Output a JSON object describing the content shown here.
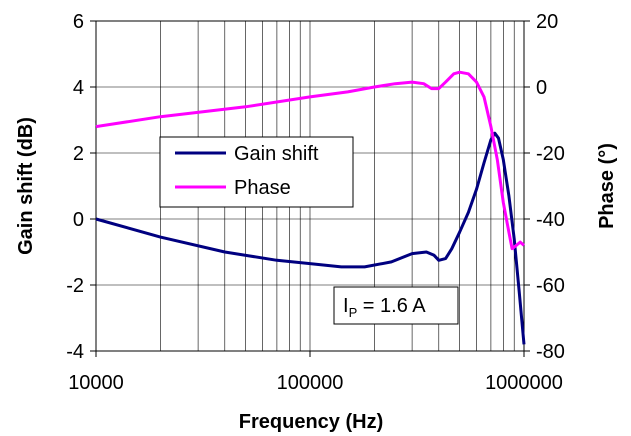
{
  "chart_data": {
    "type": "line",
    "title": "",
    "xlabel": "Frequency (Hz)",
    "ylabel": "Gain shift (dB)",
    "y2label": "Phase (°)",
    "xscale": "log",
    "xlim": [
      10000,
      1000000
    ],
    "ylim": [
      -4,
      6
    ],
    "y2lim": [
      -80,
      20
    ],
    "x_ticks": [
      "10000",
      "100000",
      "1000000"
    ],
    "y_ticks": [
      "-4",
      "-2",
      "0",
      "2",
      "4",
      "6"
    ],
    "y2_ticks": [
      "-80",
      "-60",
      "-40",
      "-20",
      "0",
      "20"
    ],
    "grid": {
      "horizontal_major": true,
      "vertical_log_minor": true
    },
    "legend_placement": "center-left",
    "annotation": {
      "main": "I",
      "sub": "P",
      "rest": " = 1.6 A"
    },
    "series": [
      {
        "name": "Gain shift",
        "axis": "left",
        "color": "#000080",
        "points": [
          [
            10000,
            0.0
          ],
          [
            20000,
            -0.55
          ],
          [
            40000,
            -1.0
          ],
          [
            70000,
            -1.25
          ],
          [
            100000,
            -1.35
          ],
          [
            140000,
            -1.45
          ],
          [
            180000,
            -1.45
          ],
          [
            240000,
            -1.3
          ],
          [
            300000,
            -1.05
          ],
          [
            350000,
            -1.0
          ],
          [
            380000,
            -1.1
          ],
          [
            400000,
            -1.25
          ],
          [
            430000,
            -1.2
          ],
          [
            460000,
            -0.9
          ],
          [
            500000,
            -0.4
          ],
          [
            550000,
            0.2
          ],
          [
            600000,
            0.9
          ],
          [
            650000,
            1.7
          ],
          [
            700000,
            2.4
          ],
          [
            730000,
            2.6
          ],
          [
            760000,
            2.45
          ],
          [
            800000,
            1.8
          ],
          [
            850000,
            0.7
          ],
          [
            900000,
            -0.6
          ],
          [
            950000,
            -2.2
          ],
          [
            1000000,
            -3.8
          ]
        ]
      },
      {
        "name": "Phase",
        "axis": "right",
        "color": "#ff00ff",
        "points": [
          [
            10000,
            -12
          ],
          [
            20000,
            -9
          ],
          [
            50000,
            -6
          ],
          [
            100000,
            -3
          ],
          [
            150000,
            -1.5
          ],
          [
            200000,
            0
          ],
          [
            250000,
            1
          ],
          [
            300000,
            1.5
          ],
          [
            340000,
            1
          ],
          [
            370000,
            -0.5
          ],
          [
            400000,
            -0.5
          ],
          [
            430000,
            1.5
          ],
          [
            470000,
            4
          ],
          [
            500000,
            4.5
          ],
          [
            550000,
            4
          ],
          [
            600000,
            1.5
          ],
          [
            650000,
            -3
          ],
          [
            700000,
            -12
          ],
          [
            750000,
            -22
          ],
          [
            800000,
            -35
          ],
          [
            850000,
            -44
          ],
          [
            880000,
            -49
          ],
          [
            920000,
            -48
          ],
          [
            960000,
            -47
          ],
          [
            1000000,
            -48
          ]
        ]
      }
    ]
  }
}
